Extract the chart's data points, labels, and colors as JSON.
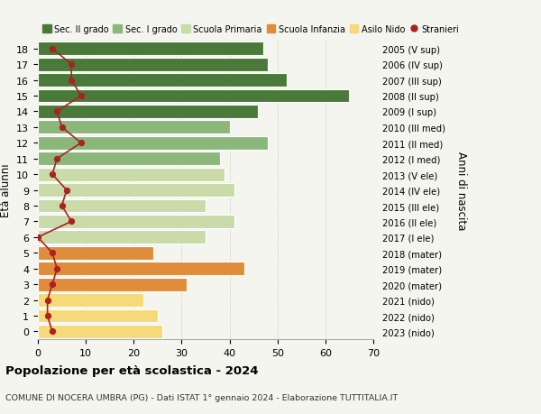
{
  "ages": [
    0,
    1,
    2,
    3,
    4,
    5,
    6,
    7,
    8,
    9,
    10,
    11,
    12,
    13,
    14,
    15,
    16,
    17,
    18
  ],
  "bar_values": [
    26,
    25,
    22,
    31,
    43,
    24,
    35,
    41,
    35,
    41,
    39,
    38,
    48,
    40,
    46,
    65,
    52,
    48,
    47
  ],
  "bar_colors": [
    "#f5d97a",
    "#f5d97a",
    "#f5d97a",
    "#e08c3a",
    "#e08c3a",
    "#e08c3a",
    "#c8dba8",
    "#c8dba8",
    "#c8dba8",
    "#c8dba8",
    "#c8dba8",
    "#8bb87a",
    "#8bb87a",
    "#8bb87a",
    "#4a7a3a",
    "#4a7a3a",
    "#4a7a3a",
    "#4a7a3a",
    "#4a7a3a"
  ],
  "stranieri_values": [
    3,
    2,
    2,
    3,
    4,
    3,
    0,
    7,
    5,
    6,
    3,
    4,
    9,
    5,
    4,
    9,
    7,
    7,
    3
  ],
  "right_labels": [
    "2023 (nido)",
    "2022 (nido)",
    "2021 (nido)",
    "2020 (mater)",
    "2019 (mater)",
    "2018 (mater)",
    "2017 (I ele)",
    "2016 (II ele)",
    "2015 (III ele)",
    "2014 (IV ele)",
    "2013 (V ele)",
    "2012 (I med)",
    "2011 (II med)",
    "2010 (III med)",
    "2009 (I sup)",
    "2008 (II sup)",
    "2007 (III sup)",
    "2006 (IV sup)",
    "2005 (V sup)"
  ],
  "legend_labels": [
    "Sec. II grado",
    "Sec. I grado",
    "Scuola Primaria",
    "Scuola Infanzia",
    "Asilo Nido",
    "Stranieri"
  ],
  "legend_colors": [
    "#4a7a3a",
    "#8bb87a",
    "#c8dba8",
    "#e08c3a",
    "#f5d97a",
    "#aa2222"
  ],
  "ylabel_left": "Età alunni",
  "ylabel_right": "Anni di nascita",
  "title": "Popolazione per età scolastica - 2024",
  "subtitle": "COMUNE DI NOCERA UMBRA (PG) - Dati ISTAT 1° gennaio 2024 - Elaborazione TUTTITALIA.IT",
  "xlim": [
    0,
    70
  ],
  "xticks": [
    0,
    10,
    20,
    30,
    40,
    50,
    60,
    70
  ],
  "background_color": "#f5f5f0",
  "bar_edge_color": "white",
  "stranieri_color": "#aa2222"
}
